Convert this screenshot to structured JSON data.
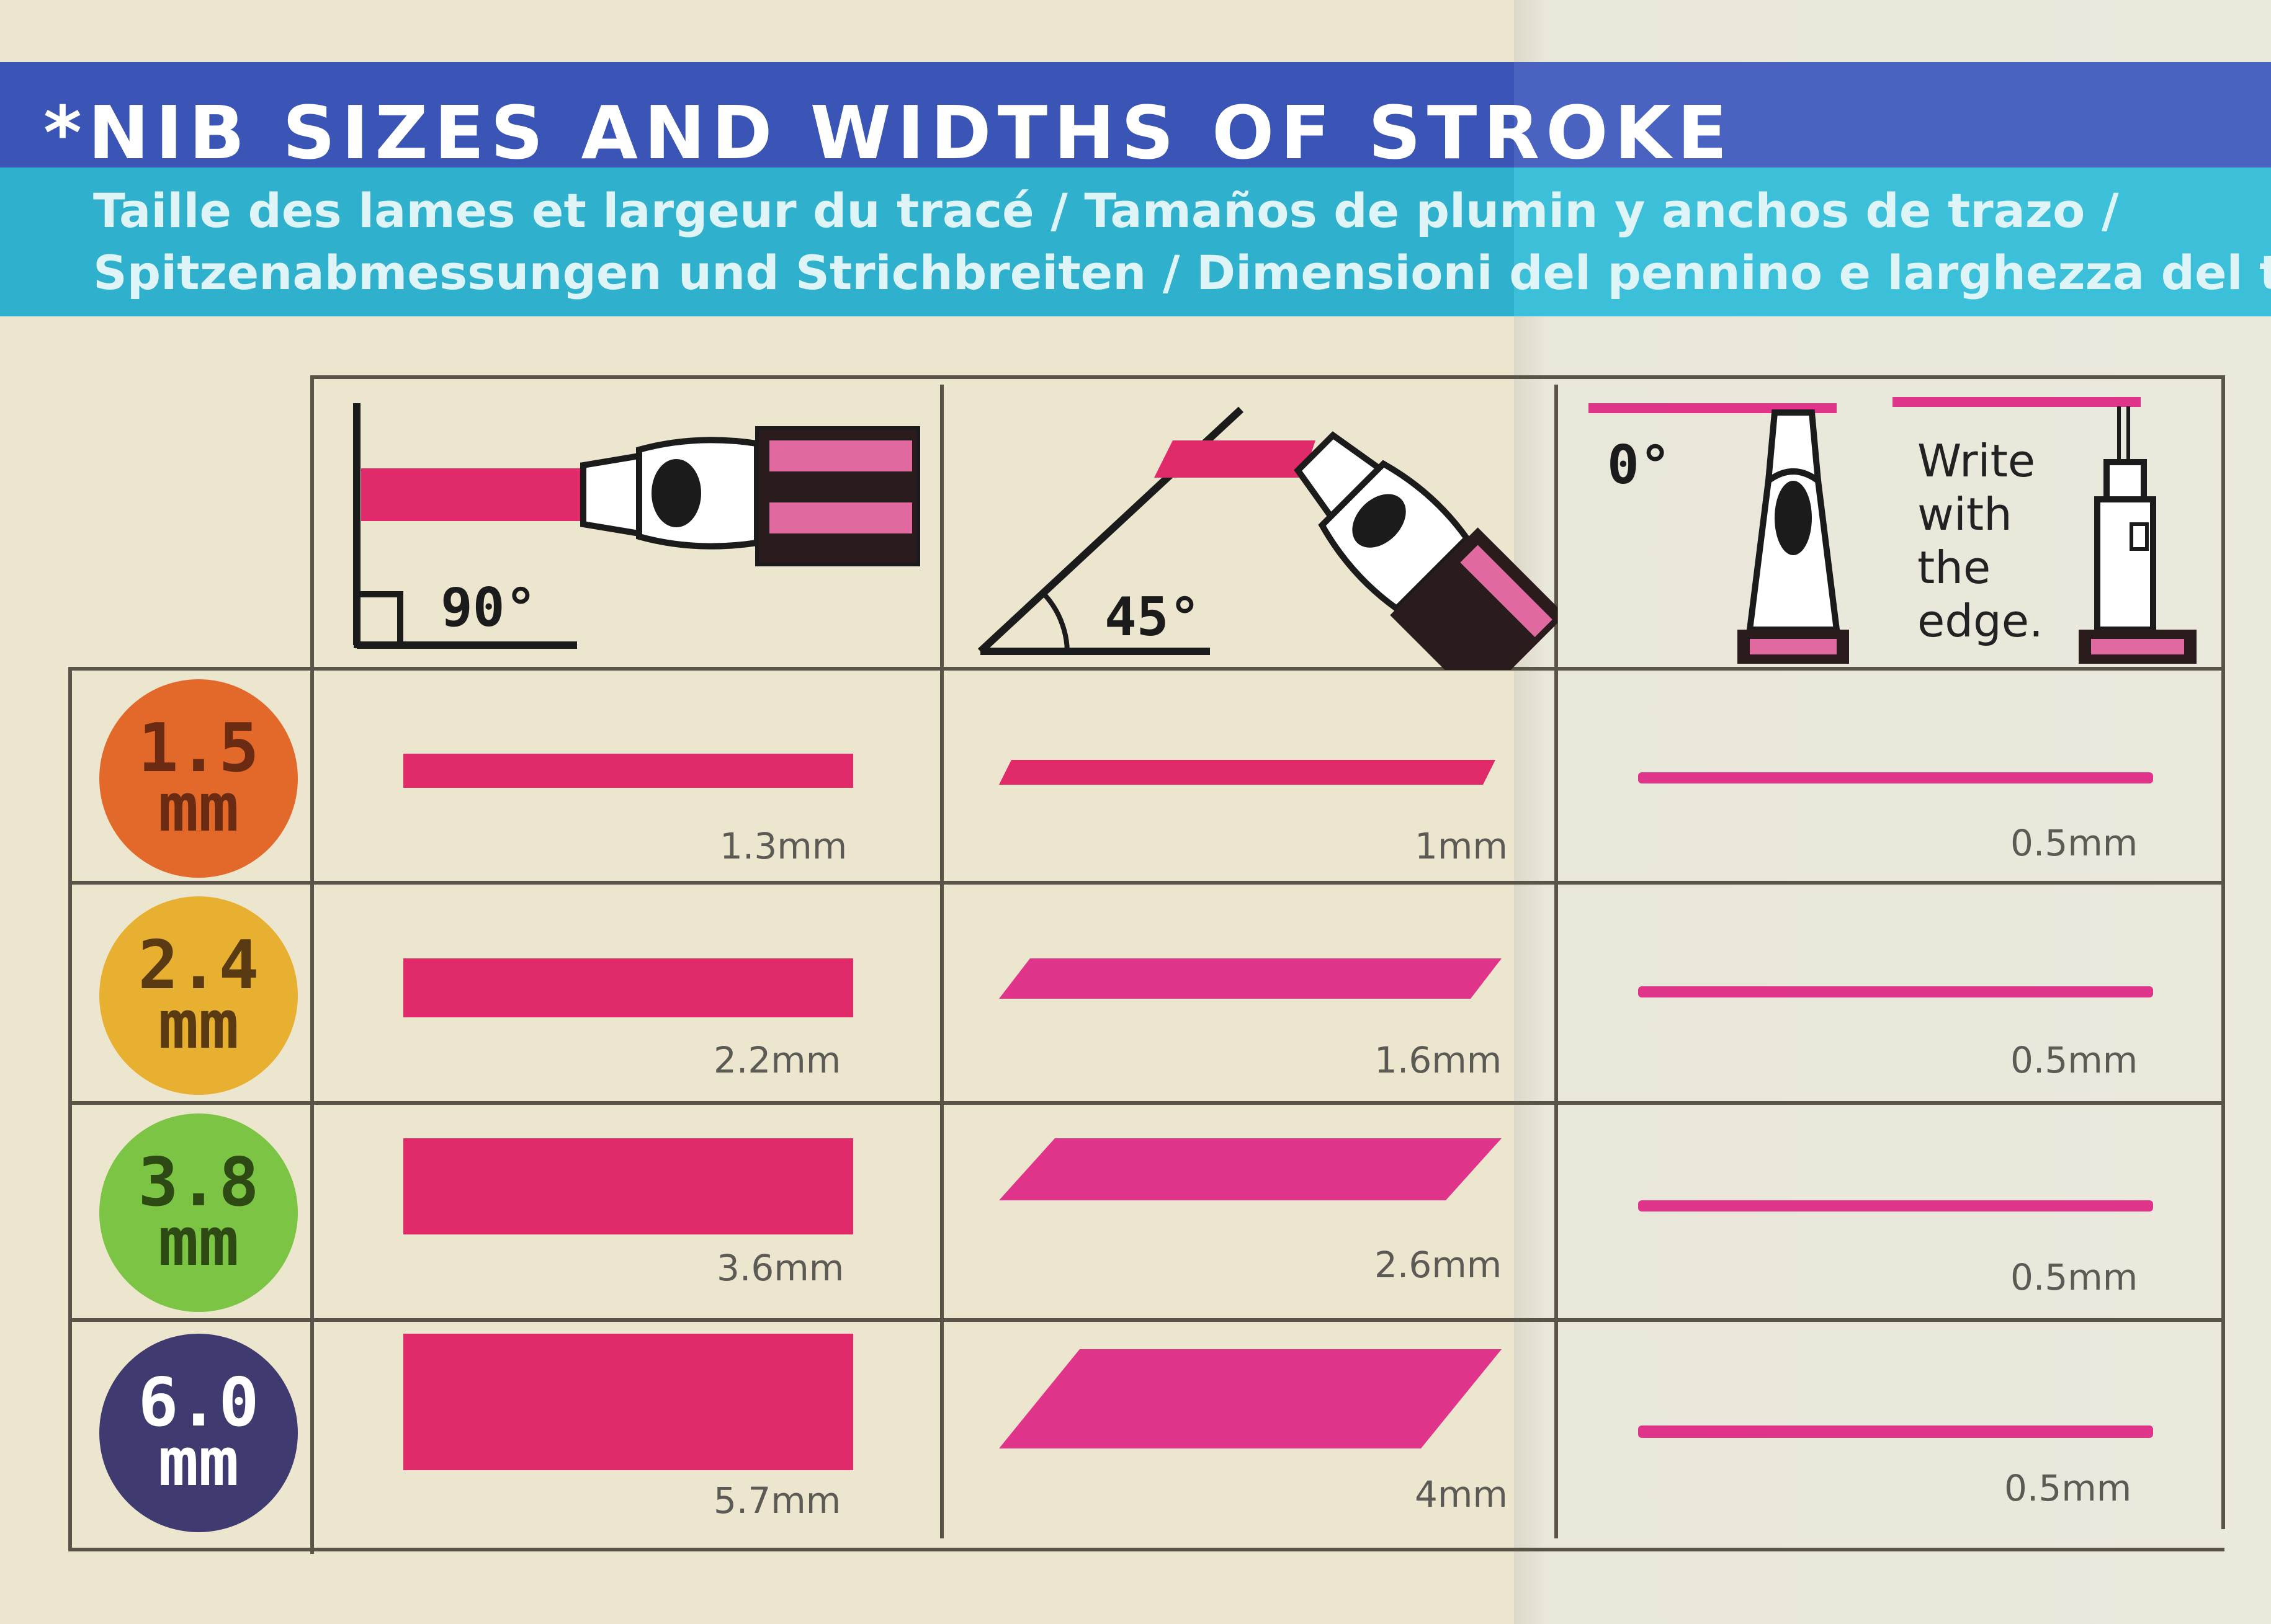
{
  "title": "*NIB SIZES AND WIDTHS OF STROKE",
  "subtitle_lines": [
    "Taille des lames et largeur du tracé / Tamaños de plumin y anchos de trazo /",
    "Spitzenabmessungen und Strichbreiten / Dimensioni del pennino e larghezza del tratt"
  ],
  "headers": {
    "angle_90": "90°",
    "angle_45": "45°",
    "angle_0": "0°",
    "edge_note": [
      "Write",
      "with",
      "the",
      "edge."
    ]
  },
  "rows": [
    {
      "nib_num": "1.5",
      "nib_unit": "mm",
      "color": "#e2692a",
      "text_color": "#6a2b12",
      "w90": "1.3mm",
      "w45": "1mm",
      "w0": "0.5mm"
    },
    {
      "nib_num": "2.4",
      "nib_unit": "mm",
      "color": "#e8b031",
      "text_color": "#5a3a12",
      "w90": "2.2mm",
      "w45": "1.6mm",
      "w0": "0.5mm"
    },
    {
      "nib_num": "3.8",
      "nib_unit": "mm",
      "color": "#7cc443",
      "text_color": "#2e4a14",
      "w90": "3.6mm",
      "w45": "2.6mm",
      "w0": "0.5mm"
    },
    {
      "nib_num": "6.0",
      "nib_unit": "mm",
      "color": "#3f3a70",
      "text_color": "#ffffff",
      "w90": "5.7mm",
      "w45": "4mm",
      "w0": "0.5mm"
    }
  ],
  "colors": {
    "stroke_pink": "#e02a6a",
    "band_blue": "#3a55b5",
    "band_cyan": "#2fb0cc"
  }
}
